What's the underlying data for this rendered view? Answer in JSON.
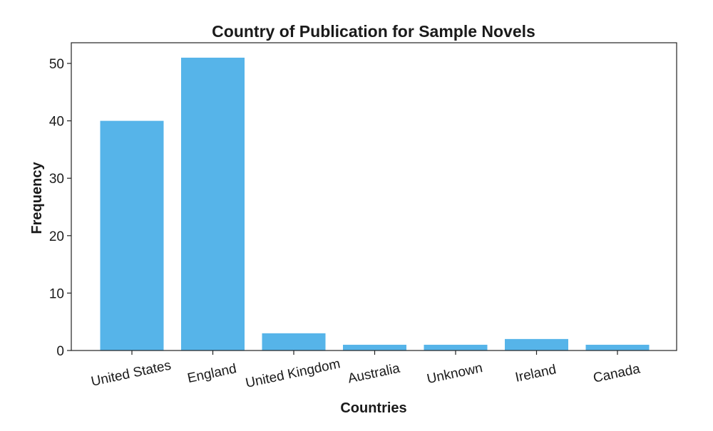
{
  "chart_data": {
    "type": "bar",
    "title": "Country of Publication for Sample Novels",
    "xlabel": "Countries",
    "ylabel": "Frequency",
    "categories": [
      "United States",
      "England",
      "United Kingdom",
      "Australia",
      "Unknown",
      "Ireland",
      "Canada"
    ],
    "values": [
      40,
      51,
      3,
      1,
      1,
      2,
      1
    ],
    "ylim": [
      0,
      53.6
    ],
    "yticks": [
      0,
      10,
      20,
      30,
      40,
      50
    ],
    "grid": false,
    "bar_color": "#56b4e9"
  }
}
